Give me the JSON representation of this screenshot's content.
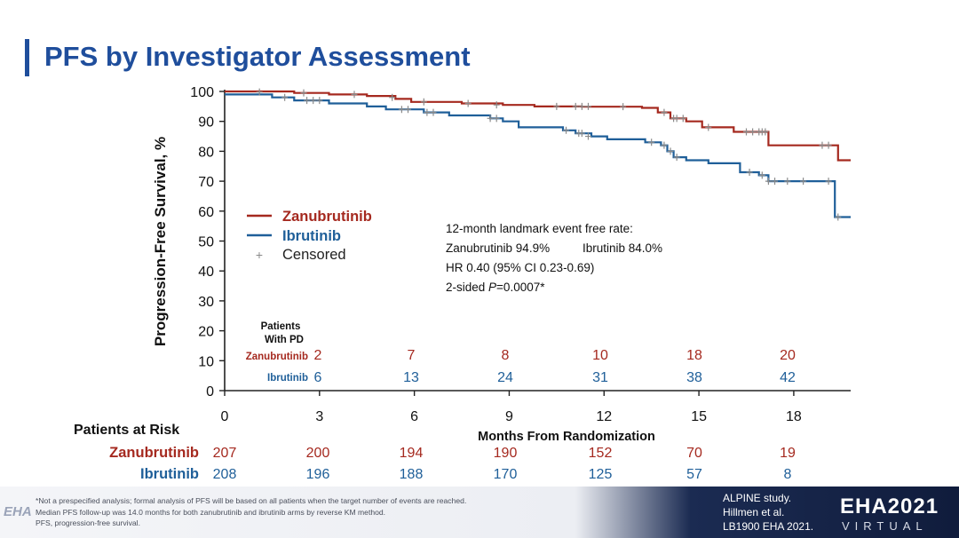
{
  "title": "PFS by Investigator Assessment",
  "chart_data": {
    "type": "line",
    "title": "PFS by Investigator Assessment",
    "xlabel": "Months From Randomization",
    "ylabel": "Progression-Free Survival, %",
    "xlim": [
      0,
      19.8
    ],
    "ylim": [
      0,
      100
    ],
    "xticks": [
      0,
      3,
      6,
      9,
      12,
      15,
      18
    ],
    "yticks": [
      0,
      10,
      20,
      30,
      40,
      50,
      60,
      70,
      80,
      90,
      100
    ],
    "legend": [
      "Zanubrutinib",
      "Ibrutinib",
      "Censored"
    ],
    "series": [
      {
        "name": "Zanubrutinib",
        "color": "#a5291f",
        "steps": [
          [
            0,
            100
          ],
          [
            2.2,
            99.5
          ],
          [
            3.3,
            99
          ],
          [
            4.5,
            98.5
          ],
          [
            5.4,
            97.5
          ],
          [
            5.9,
            96.5
          ],
          [
            7.5,
            96
          ],
          [
            8.8,
            95.5
          ],
          [
            9.8,
            95
          ],
          [
            11.3,
            94.9
          ],
          [
            13.2,
            94.5
          ],
          [
            13.7,
            93
          ],
          [
            14.1,
            91
          ],
          [
            14.6,
            90
          ],
          [
            15.1,
            88
          ],
          [
            16.1,
            86.5
          ],
          [
            17.2,
            82
          ],
          [
            19.4,
            77
          ],
          [
            19.8,
            77
          ]
        ],
        "censored": [
          [
            1.1,
            99.8
          ],
          [
            2.5,
            99.5
          ],
          [
            4.1,
            99
          ],
          [
            5.3,
            98
          ],
          [
            6.3,
            96.5
          ],
          [
            7.7,
            96
          ],
          [
            8.6,
            95.5
          ],
          [
            10.5,
            95
          ],
          [
            11.1,
            95
          ],
          [
            11.3,
            95
          ],
          [
            11.5,
            95
          ],
          [
            12.6,
            94.9
          ],
          [
            13.9,
            93
          ],
          [
            14.2,
            91
          ],
          [
            14.3,
            91
          ],
          [
            14.5,
            91
          ],
          [
            15.3,
            88
          ],
          [
            16.5,
            86.5
          ],
          [
            16.7,
            86.5
          ],
          [
            16.9,
            86.5
          ],
          [
            17.0,
            86.5
          ],
          [
            17.1,
            86.5
          ],
          [
            18.9,
            82
          ],
          [
            19.1,
            82
          ]
        ]
      },
      {
        "name": "Ibrutinib",
        "color": "#1f5f99",
        "steps": [
          [
            0,
            99
          ],
          [
            1.5,
            98
          ],
          [
            2.2,
            97
          ],
          [
            3.3,
            96
          ],
          [
            4.5,
            95
          ],
          [
            5.1,
            94
          ],
          [
            6.3,
            93
          ],
          [
            7.1,
            92
          ],
          [
            8.4,
            91
          ],
          [
            8.8,
            90
          ],
          [
            9.3,
            88
          ],
          [
            10.7,
            87
          ],
          [
            11.1,
            86
          ],
          [
            11.6,
            85
          ],
          [
            12.1,
            84
          ],
          [
            13.3,
            83
          ],
          [
            13.8,
            82
          ],
          [
            14.0,
            80
          ],
          [
            14.2,
            78
          ],
          [
            14.6,
            77
          ],
          [
            15.3,
            76
          ],
          [
            16.3,
            73
          ],
          [
            16.9,
            72
          ],
          [
            17.2,
            70
          ],
          [
            19.1,
            70
          ],
          [
            19.3,
            58
          ],
          [
            19.8,
            58
          ]
        ],
        "censored": [
          [
            1.9,
            98
          ],
          [
            2.6,
            97
          ],
          [
            2.8,
            97
          ],
          [
            3.0,
            97
          ],
          [
            5.6,
            94
          ],
          [
            5.8,
            94
          ],
          [
            6.4,
            93
          ],
          [
            6.6,
            93
          ],
          [
            8.4,
            91
          ],
          [
            8.6,
            91
          ],
          [
            10.8,
            87
          ],
          [
            11.2,
            86
          ],
          [
            11.3,
            86
          ],
          [
            11.5,
            85
          ],
          [
            13.5,
            83
          ],
          [
            13.9,
            82
          ],
          [
            14.1,
            80
          ],
          [
            14.3,
            78
          ],
          [
            16.6,
            73
          ],
          [
            17.0,
            72
          ],
          [
            17.2,
            70
          ],
          [
            17.4,
            70
          ],
          [
            17.8,
            70
          ],
          [
            18.3,
            70
          ],
          [
            19.1,
            70
          ],
          [
            19.4,
            58
          ]
        ]
      }
    ],
    "landmark_text": {
      "line1": "12-month landmark event free rate:",
      "line2a": "Zanubrutinib 94.9%",
      "line2b": "Ibrutinib 84.0%",
      "line3": "HR 0.40 (95% CI 0.23-0.69)",
      "line4_prefix": "2-sided ",
      "line4_p": "P",
      "line4_suffix": "=0.0007*"
    },
    "patients_with_pd": {
      "header_line1": "Patients",
      "header_line2": "With PD",
      "rows": [
        {
          "label": "Zanubrutinib",
          "values": [
            "2",
            "7",
            "8",
            "10",
            "18",
            "20"
          ]
        },
        {
          "label": "Ibrutinib",
          "values": [
            "6",
            "13",
            "24",
            "31",
            "38",
            "42"
          ]
        }
      ]
    },
    "patients_at_risk": {
      "header": "Patients at Risk",
      "rows": [
        {
          "label": "Zanubrutinib",
          "values": [
            "207",
            "200",
            "194",
            "190",
            "152",
            "70",
            "19"
          ]
        },
        {
          "label": "Ibrutinib",
          "values": [
            "208",
            "196",
            "188",
            "170",
            "125",
            "57",
            "8"
          ]
        }
      ]
    }
  },
  "footnotes": {
    "line1": "*Not a prespecified analysis; formal analysis of PFS will be based on all patients when the target number of events are reached.",
    "line2": "Median PFS follow-up was 14.0 months for both zanubrutinib and ibrutinib arms by reverse KM method.",
    "line3": "PFS, progression-free survival."
  },
  "citation": {
    "line1": "ALPINE study.",
    "line2": "Hillmen et al.",
    "line3": "LB1900 EHA 2021."
  },
  "branding": {
    "logo_small": "EHA",
    "logo_big": "EHA2021",
    "logo_sub": "VIRTUAL"
  },
  "colors": {
    "title": "#1f4e9c",
    "zanubrutinib": "#a5291f",
    "ibrutinib": "#1f5f99",
    "censored": "#8a8a8a"
  }
}
